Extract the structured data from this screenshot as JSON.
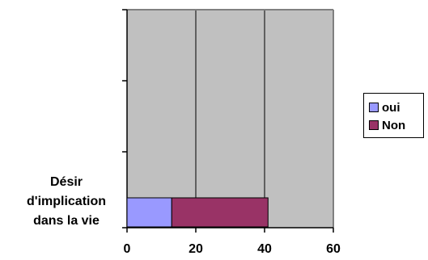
{
  "chart_data": {
    "type": "bar",
    "orientation": "horizontal",
    "stacked": true,
    "categories": [
      "Désir d'implication dans la vie"
    ],
    "category_label_lines": [
      "Désir",
      "d'implication",
      "dans la vie"
    ],
    "series": [
      {
        "name": "oui",
        "values": [
          13
        ],
        "color": "#9999ff"
      },
      {
        "name": "Non",
        "values": [
          28
        ],
        "color": "#993366"
      }
    ],
    "xlim": [
      0,
      60
    ],
    "xticks": [
      "0",
      "20",
      "40",
      "60"
    ],
    "grid": true,
    "plot_background": "#c0c0c0",
    "legend_position": "right"
  }
}
